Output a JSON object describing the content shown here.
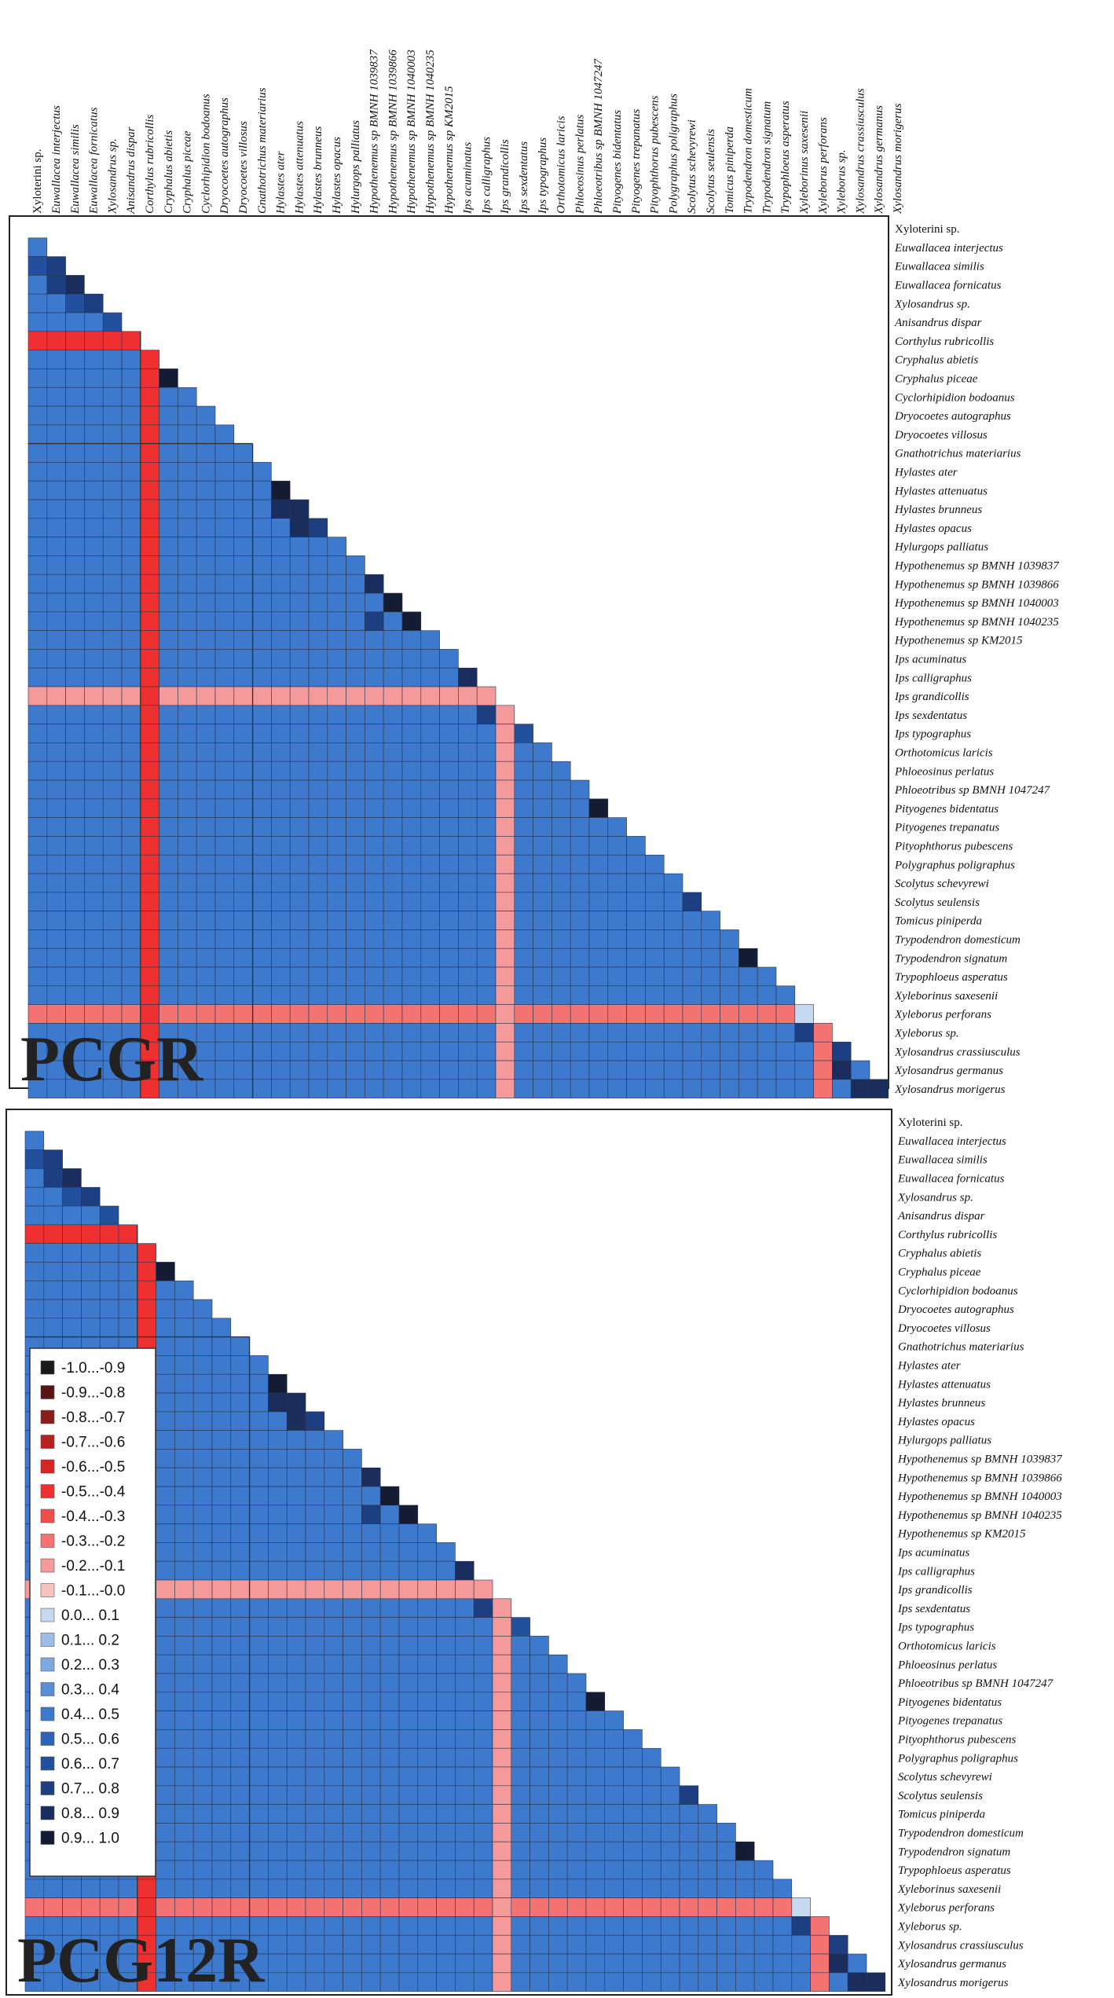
{
  "chart_data": [
    {
      "type": "heatmap",
      "layout": "lower-triangular correlation matrix",
      "title": "PCGR",
      "species": [
        "Xyloterini sp.",
        "Euwallacea interjectus",
        "Euwallacea similis",
        "Euwallacea fornicatus",
        "Xylosandrus sp.",
        "Anisandrus dispar",
        "Corthylus rubricollis",
        "Cryphalus abietis",
        "Cryphalus piceae",
        "Cyclorhipidion bodoanus",
        "Dryocoetes autographus",
        "Dryocoetes villosus",
        "Gnathotrichus materiarius",
        "Hylastes ater",
        "Hylastes attenuatus",
        "Hylastes brunneus",
        "Hylastes opacus",
        "Hylurgops palliatus",
        "Hypothenemus sp BMNH 1039837",
        "Hypothenemus sp BMNH 1039866",
        "Hypothenemus sp BMNH 1040003",
        "Hypothenemus sp BMNH 1040235",
        "Hypothenemus sp KM2015",
        "Ips acuminatus",
        "Ips calligraphus",
        "Ips grandicollis",
        "Ips sexdentatus",
        "Ips typographus",
        "Orthotomicus laricis",
        "Phloeosinus perlatus",
        "Phloeotribus sp BMNH 1047247",
        "Pityogenes bidentatus",
        "Pityogenes trepanatus",
        "Pityophthorus pubescens",
        "Polygraphus poligraphus",
        "Scolytus schevyrewi",
        "Scolytus seulensis",
        "Tomicus piniperda",
        "Trypodendron domesticum",
        "Trypodendron signatum",
        "Trypophloeus asperatus",
        "Xyleborinus saxesenii",
        "Xyleborus perforans",
        "Xyleborus sp.",
        "Xylosandrus crassiusculus",
        "Xylosandrus germanus",
        "Xylosandrus morigerus"
      ],
      "column_labels": [
        "Xyloterini sp.",
        "Euwallacea interjectus",
        "Euwallacea similis",
        "Euwallacea fornicatus",
        "Xylosandrus sp.",
        "Anisandrus dispar",
        "Corthylus rubricollis",
        "Cryphalus abietis",
        "Cryphalus piceae",
        "Cyclorhipidion bodoanus",
        "Dryocoetes autographus",
        "Dryocoetes villosus",
        "Gnathotrichus materiarius",
        "Hylastes ater",
        "Hylastes attenuatus",
        "Hylastes brunneus",
        "Hylastes opacus",
        "Hylurgops palliatus",
        "Hypothenemus sp BMNH 1039837",
        "Hypothenemus sp BMNH 1039866",
        "Hypothenemus sp BMNH 1040003",
        "Hypothenemus sp BMNH 1040235",
        "Hypothenemus sp KM2015",
        "Ips acuminatus",
        "Ips calligraphus",
        "Ips grandicollis",
        "Ips sexdentatus",
        "Ips typographus",
        "Orthotomicus laricis",
        "Phloeosinus perlatus",
        "Phloeotribus sp BMNH 1047247",
        "Pityogenes bidentatus",
        "Pityogenes trepanatus",
        "Pityophthorus pubescens",
        "Polygraphus poligraphus",
        "Scolytus schevyrewi",
        "Scolytus seulensis",
        "Tomicus piniperda",
        "Trypodendron domesticum",
        "Trypodendron signatum",
        "Trypophloeus asperatus",
        "Xyleborinus saxesenii",
        "Xyleborus perforans",
        "Xyleborus sp.",
        "Xylosandrus crassiusculus",
        "Xylosandrus germanus",
        "Xylosandrus morigerus"
      ],
      "row_labels": [
        "Xyloterini sp.",
        "Euwallacea interjectus",
        "Euwallacea similis",
        "Euwallacea fornicatus",
        "Xylosandrus sp.",
        "Anisandrus dispar",
        "Corthylus rubricollis",
        "Cryphalus abietis",
        "Cryphalus piceae",
        "Cyclorhipidion bodoanus",
        "Dryocoetes autographus",
        "Dryocoetes villosus",
        "Gnathotrichus materiarius",
        "Hylastes ater",
        "Hylastes attenuatus",
        "Hylastes brunneus",
        "Hylastes opacus",
        "Hylurgops palliatus",
        "Hypothenemus sp BMNH 1039837",
        "Hypothenemus sp BMNH 1039866",
        "Hypothenemus sp BMNH 1040003",
        "Hypothenemus sp BMNH 1040235",
        "Hypothenemus sp KM2015",
        "Ips acuminatus",
        "Ips calligraphus",
        "Ips grandicollis",
        "Ips sexdentatus",
        "Ips typographus",
        "Orthotomicus laricis",
        "Phloeosinus perlatus",
        "Phloeotribus sp BMNH 1047247",
        "Pityogenes bidentatus",
        "Pityogenes trepanatus",
        "Pityophthorus pubescens",
        "Polygraphus poligraphus",
        "Scolytus schevyrewi",
        "Scolytus seulensis",
        "Tomicus piniperda",
        "Trypodendron domesticum",
        "Trypodendron signatum",
        "Trypophloeus asperatus",
        "Xyleborinus saxesenii",
        "Xyleborus perforans",
        "Xyleborus sp.",
        "Xylosandrus crassiusculus",
        "Xylosandrus germanus",
        "Xylosandrus morigerus"
      ],
      "baseline_correlation": 0.45,
      "negative_species_cells": {
        "Corthylus rubricollis": -0.45,
        "Ips grandicollis": -0.15,
        "Xyleborus perforans": -0.25
      },
      "exceptions": [
        {
          "row": "Euwallacea interjectus",
          "col": "Xyloterini sp.",
          "value": 0.45
        },
        {
          "row": "Euwallacea similis",
          "col": "Xyloterini sp.",
          "value": 0.65
        },
        {
          "row": "Euwallacea similis",
          "col": "Euwallacea interjectus",
          "value": 0.75
        },
        {
          "row": "Euwallacea fornicatus",
          "col": "Euwallacea interjectus",
          "value": 0.75
        },
        {
          "row": "Euwallacea fornicatus",
          "col": "Euwallacea similis",
          "value": 0.85
        },
        {
          "row": "Xylosandrus sp.",
          "col": "Euwallacea similis",
          "value": 0.65
        },
        {
          "row": "Xylosandrus sp.",
          "col": "Euwallacea fornicatus",
          "value": 0.75
        },
        {
          "row": "Anisandrus dispar",
          "col": "Xylosandrus sp.",
          "value": 0.65
        },
        {
          "row": "Cryphalus abietis",
          "col": "Corthylus rubricollis",
          "value": -0.45
        },
        {
          "row": "Cryphalus piceae",
          "col": "Cryphalus abietis",
          "value": 0.95
        },
        {
          "row": "Hylastes attenuatus",
          "col": "Hylastes ater",
          "value": 0.95
        },
        {
          "row": "Hylastes brunneus",
          "col": "Hylastes ater",
          "value": 0.85
        },
        {
          "row": "Hylastes brunneus",
          "col": "Hylastes attenuatus",
          "value": 0.85
        },
        {
          "row": "Hylastes opacus",
          "col": "Hylastes attenuatus",
          "value": 0.85
        },
        {
          "row": "Hylastes opacus",
          "col": "Hylastes brunneus",
          "value": 0.75
        },
        {
          "row": "Hypothenemus sp BMNH 1039866",
          "col": "Hypothenemus sp BMNH 1039837",
          "value": 0.85
        },
        {
          "row": "Hypothenemus sp BMNH 1040003",
          "col": "Hypothenemus sp BMNH 1039866",
          "value": 0.95
        },
        {
          "row": "Hypothenemus sp BMNH 1040235",
          "col": "Hypothenemus sp BMNH 1039837",
          "value": 0.75
        },
        {
          "row": "Hypothenemus sp BMNH 1040235",
          "col": "Hypothenemus sp BMNH 1040003",
          "value": 0.95
        },
        {
          "row": "Ips calligraphus",
          "col": "Ips acuminatus",
          "value": 0.85
        },
        {
          "row": "Ips sexdentatus",
          "col": "Ips calligraphus",
          "value": 0.75
        },
        {
          "row": "Ips typographus",
          "col": "Ips sexdentatus",
          "value": 0.65
        },
        {
          "row": "Pityogenes bidentatus",
          "col": "Phloeotribus sp BMNH 1047247",
          "value": 0.95
        },
        {
          "row": "Scolytus seulensis",
          "col": "Scolytus schevyrewi",
          "value": 0.75
        },
        {
          "row": "Trypodendron signatum",
          "col": "Trypodendron domesticum",
          "value": 0.95
        },
        {
          "row": "Xyleborus perforans",
          "col": "Xyleborinus saxesenii",
          "value": 0.05
        },
        {
          "row": "Xyleborus sp.",
          "col": "Xyleborinus saxesenii",
          "value": 0.75
        },
        {
          "row": "Xylosandrus crassiusculus",
          "col": "Xyleborus sp.",
          "value": 0.75
        },
        {
          "row": "Xylosandrus germanus",
          "col": "Xyleborus sp.",
          "value": 0.85
        },
        {
          "row": "Xylosandrus morigerus",
          "col": "Xylosandrus crassiusculus",
          "value": 0.85
        },
        {
          "row": "Xylosandrus morigerus",
          "col": "Xylosandrus germanus",
          "value": 0.85
        }
      ]
    },
    {
      "type": "heatmap",
      "layout": "lower-triangular correlation matrix",
      "title": "PCG12R",
      "species": [
        "Xyloterini sp.",
        "Euwallacea interjectus",
        "Euwallacea similis",
        "Euwallacea fornicatus",
        "Xylosandrus sp.",
        "Anisandrus dispar",
        "Corthylus rubricollis",
        "Cryphalus abietis",
        "Cryphalus piceae",
        "Cyclorhipidion bodoanus",
        "Dryocoetes autographus",
        "Dryocoetes villosus",
        "Gnathotrichus materiarius",
        "Hylastes ater",
        "Hylastes attenuatus",
        "Hylastes brunneus",
        "Hylastes opacus",
        "Hylurgops palliatus",
        "Hypothenemus sp BMNH 1039837",
        "Hypothenemus sp BMNH 1039866",
        "Hypothenemus sp BMNH 1040003",
        "Hypothenemus sp BMNH 1040235",
        "Hypothenemus sp KM2015",
        "Ips acuminatus",
        "Ips calligraphus",
        "Ips grandicollis",
        "Ips sexdentatus",
        "Ips typographus",
        "Orthotomicus laricis",
        "Phloeosinus perlatus",
        "Phloeotribus sp BMNH 1047247",
        "Pityogenes bidentatus",
        "Pityogenes trepanatus",
        "Pityophthorus pubescens",
        "Polygraphus poligraphus",
        "Scolytus schevyrewi",
        "Scolytus seulensis",
        "Tomicus piniperda",
        "Trypodendron domesticum",
        "Trypodendron signatum",
        "Trypophloeus asperatus",
        "Xyleborinus saxesenii",
        "Xyleborus perforans",
        "Xyleborus sp.",
        "Xylosandrus crassiusculus",
        "Xylosandrus germanus",
        "Xylosandrus morigerus"
      ],
      "row_labels": [
        "Xyloterini sp.",
        "Euwallacea interjectus",
        "Euwallacea similis",
        "Euwallacea fornicatus",
        "Xylosandrus sp.",
        "Anisandrus dispar",
        "Corthylus rubricollis",
        "Cryphalus abietis",
        "Cryphalus piceae",
        "Cyclorhipidion bodoanus",
        "Dryocoetes autographus",
        "Dryocoetes villosus",
        "Gnathotrichus materiarius",
        "Hylastes ater",
        "Hylastes attenuatus",
        "Hylastes brunneus",
        "Hylastes opacus",
        "Hylurgops palliatus",
        "Hypothenemus sp BMNH 1039837",
        "Hypothenemus sp BMNH 1039866",
        "Hypothenemus sp BMNH 1040003",
        "Hypothenemus sp BMNH 1040235",
        "Hypothenemus sp KM2015",
        "Ips acuminatus",
        "Ips calligraphus",
        "Ips grandicollis",
        "Ips sexdentatus",
        "Ips typographus",
        "Orthotomicus laricis",
        "Phloeosinus perlatus",
        "Phloeotribus sp BMNH 1047247",
        "Pityogenes bidentatus",
        "Pityogenes trepanatus",
        "Pityophthorus pubescens",
        "Polygraphus poligraphus",
        "Scolytus schevyrewi",
        "Scolytus seulensis",
        "Tomicus piniperda",
        "Trypodendron domesticum",
        "Trypodendron signatum",
        "Trypophloeus asperatus",
        "Xyleborinus saxesenii",
        "Xyleborus perforans",
        "Xyleborus sp.",
        "Xylosandrus crassiusculus",
        "Xylosandrus germanus",
        "Xylosandrus morigerus"
      ],
      "baseline_correlation": 0.45,
      "negative_species_cells": {
        "Corthylus rubricollis": -0.45,
        "Ips grandicollis": -0.15,
        "Xyleborus perforans": -0.25
      },
      "exceptions": [
        {
          "row": "Euwallacea interjectus",
          "col": "Xyloterini sp.",
          "value": 0.45
        },
        {
          "row": "Euwallacea similis",
          "col": "Xyloterini sp.",
          "value": 0.65
        },
        {
          "row": "Euwallacea similis",
          "col": "Euwallacea interjectus",
          "value": 0.75
        },
        {
          "row": "Euwallacea fornicatus",
          "col": "Euwallacea interjectus",
          "value": 0.75
        },
        {
          "row": "Euwallacea fornicatus",
          "col": "Euwallacea similis",
          "value": 0.85
        },
        {
          "row": "Xylosandrus sp.",
          "col": "Euwallacea similis",
          "value": 0.65
        },
        {
          "row": "Xylosandrus sp.",
          "col": "Euwallacea fornicatus",
          "value": 0.75
        },
        {
          "row": "Anisandrus dispar",
          "col": "Xylosandrus sp.",
          "value": 0.65
        },
        {
          "row": "Cryphalus abietis",
          "col": "Corthylus rubricollis",
          "value": -0.45
        },
        {
          "row": "Cryphalus piceae",
          "col": "Cryphalus abietis",
          "value": 0.95
        },
        {
          "row": "Hylastes attenuatus",
          "col": "Hylastes ater",
          "value": 0.95
        },
        {
          "row": "Hylastes brunneus",
          "col": "Hylastes ater",
          "value": 0.85
        },
        {
          "row": "Hylastes brunneus",
          "col": "Hylastes attenuatus",
          "value": 0.85
        },
        {
          "row": "Hylastes opacus",
          "col": "Hylastes attenuatus",
          "value": 0.85
        },
        {
          "row": "Hylastes opacus",
          "col": "Hylastes brunneus",
          "value": 0.75
        },
        {
          "row": "Hypothenemus sp BMNH 1039866",
          "col": "Hypothenemus sp BMNH 1039837",
          "value": 0.85
        },
        {
          "row": "Hypothenemus sp BMNH 1040003",
          "col": "Hypothenemus sp BMNH 1039866",
          "value": 0.95
        },
        {
          "row": "Hypothenemus sp BMNH 1040235",
          "col": "Hypothenemus sp BMNH 1039837",
          "value": 0.75
        },
        {
          "row": "Hypothenemus sp BMNH 1040235",
          "col": "Hypothenemus sp BMNH 1040003",
          "value": 0.95
        },
        {
          "row": "Ips calligraphus",
          "col": "Ips acuminatus",
          "value": 0.85
        },
        {
          "row": "Ips sexdentatus",
          "col": "Ips calligraphus",
          "value": 0.75
        },
        {
          "row": "Ips typographus",
          "col": "Ips sexdentatus",
          "value": 0.65
        },
        {
          "row": "Pityogenes bidentatus",
          "col": "Phloeotribus sp BMNH 1047247",
          "value": 0.95
        },
        {
          "row": "Scolytus seulensis",
          "col": "Scolytus schevyrewi",
          "value": 0.75
        },
        {
          "row": "Trypodendron signatum",
          "col": "Trypodendron domesticum",
          "value": 0.95
        },
        {
          "row": "Xyleborus perforans",
          "col": "Xyleborinus saxesenii",
          "value": 0.05
        },
        {
          "row": "Xyleborus sp.",
          "col": "Xyleborinus saxesenii",
          "value": 0.75
        },
        {
          "row": "Xylosandrus crassiusculus",
          "col": "Xyleborus sp.",
          "value": 0.75
        },
        {
          "row": "Xylosandrus germanus",
          "col": "Xyleborus sp.",
          "value": 0.85
        },
        {
          "row": "Xylosandrus morigerus",
          "col": "Xylosandrus crassiusculus",
          "value": 0.85
        },
        {
          "row": "Xylosandrus morigerus",
          "col": "Xylosandrus germanus",
          "value": 0.85
        }
      ],
      "legend": {
        "placement": "left",
        "items": [
          {
            "label": "-1.0...-0.9",
            "color": "#1a1a1a"
          },
          {
            "label": "-0.9...-0.8",
            "color": "#5a1414"
          },
          {
            "label": "-0.8...-0.7",
            "color": "#8b1c1c"
          },
          {
            "label": "-0.7...-0.6",
            "color": "#b82020"
          },
          {
            "label": "-0.6...-0.5",
            "color": "#d92424"
          },
          {
            "label": "-0.5...-0.4",
            "color": "#ee3030"
          },
          {
            "label": "-0.4...-0.3",
            "color": "#f04e4e"
          },
          {
            "label": "-0.3...-0.2",
            "color": "#f37272"
          },
          {
            "label": "-0.2...-0.1",
            "color": "#f59a9a"
          },
          {
            "label": "-0.1...-0.0",
            "color": "#f6c2c2"
          },
          {
            "label": "0.0... 0.1",
            "color": "#c6d9f1"
          },
          {
            "label": "0.1... 0.2",
            "color": "#9dbde8"
          },
          {
            "label": "0.2... 0.3",
            "color": "#7ea8e0"
          },
          {
            "label": "0.3... 0.4",
            "color": "#5a8fd6"
          },
          {
            "label": "0.4... 0.5",
            "color": "#3d79cc"
          },
          {
            "label": "0.5... 0.6",
            "color": "#2d63b8"
          },
          {
            "label": "0.6... 0.7",
            "color": "#22509c"
          },
          {
            "label": "0.7... 0.8",
            "color": "#1d3e80"
          },
          {
            "label": "0.8... 0.9",
            "color": "#1a2d5c"
          },
          {
            "label": "0.9... 1.0",
            "color": "#141c33"
          }
        ]
      }
    }
  ]
}
